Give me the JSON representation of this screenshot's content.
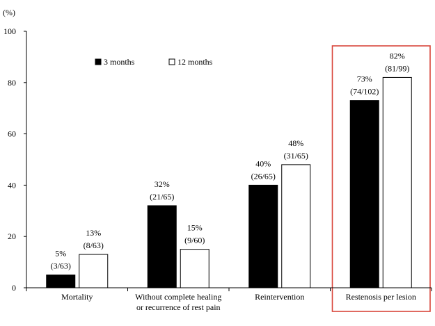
{
  "chart_data": {
    "type": "bar",
    "y_unit": "(%)",
    "ylim": [
      0,
      100
    ],
    "yticks": [
      0,
      20,
      40,
      60,
      80,
      100
    ],
    "grid": false,
    "legend_position": "top-left",
    "categories": [
      [
        "Mortality"
      ],
      [
        "Without complete healing",
        "or recurrence of rest pain"
      ],
      [
        "Reintervention"
      ],
      [
        "Restenosis per lesion"
      ]
    ],
    "series": [
      {
        "name": "3 months",
        "color": "#000000",
        "values": [
          5,
          32,
          40,
          73
        ],
        "labels": [
          [
            "5%",
            "(3/63)"
          ],
          [
            "32%",
            "(21/65)"
          ],
          [
            "40%",
            "(26/65)"
          ],
          [
            "73%",
            "(74/102)"
          ]
        ]
      },
      {
        "name": "12 months",
        "color": "#ffffff",
        "values": [
          13,
          15,
          48,
          82
        ],
        "labels": [
          [
            "13%",
            "(8/63)"
          ],
          [
            "15%",
            "(9/60)"
          ],
          [
            "48%",
            "(31/65)"
          ],
          [
            "82%",
            "(81/99)"
          ]
        ]
      }
    ],
    "highlight": {
      "category_index": 3,
      "color": "#d9453a"
    }
  }
}
